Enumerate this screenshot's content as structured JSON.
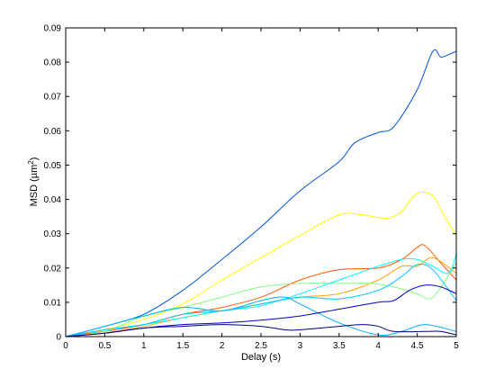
{
  "chart_data": {
    "type": "line",
    "title": "",
    "xlabel": "Delay (s)",
    "ylabel_main": "MSD (µm",
    "ylabel_sup": "2",
    "ylabel_close": ")",
    "xlim": [
      0,
      5
    ],
    "ylim": [
      0,
      0.09
    ],
    "xticks": [
      0,
      0.5,
      1,
      1.5,
      2,
      2.5,
      3,
      3.5,
      4,
      4.5,
      5
    ],
    "xtick_labels": [
      "0",
      "0.5",
      "1",
      "1.5",
      "2",
      "2.5",
      "3",
      "3.5",
      "4",
      "4.5",
      "5"
    ],
    "yticks": [
      0,
      0.01,
      0.02,
      0.03,
      0.04,
      0.05,
      0.06,
      0.07,
      0.08,
      0.09
    ],
    "ytick_labels": [
      "0",
      "0.01",
      "0.02",
      "0.03",
      "0.04",
      "0.05",
      "0.06",
      "0.07",
      "0.08",
      "0.09"
    ],
    "grid": false,
    "series": [
      {
        "color": "#0055e0",
        "points": [
          [
            0,
            0
          ],
          [
            0.5,
            0.003
          ],
          [
            1,
            0.0065
          ],
          [
            1.5,
            0.0135
          ],
          [
            2,
            0.0225
          ],
          [
            2.5,
            0.032
          ],
          [
            3,
            0.0425
          ],
          [
            3.5,
            0.051
          ],
          [
            3.7,
            0.0565
          ],
          [
            4,
            0.0595
          ],
          [
            4.2,
            0.0612
          ],
          [
            4.5,
            0.072
          ],
          [
            4.7,
            0.0832
          ],
          [
            4.8,
            0.0815
          ],
          [
            4.9,
            0.0822
          ],
          [
            5,
            0.0832
          ]
        ]
      },
      {
        "color": "#ffff00",
        "points": [
          [
            0,
            0
          ],
          [
            0.5,
            0.002
          ],
          [
            1,
            0.005
          ],
          [
            1.5,
            0.0095
          ],
          [
            2,
            0.0165
          ],
          [
            2.5,
            0.023
          ],
          [
            3,
            0.0295
          ],
          [
            3.5,
            0.0355
          ],
          [
            3.8,
            0.0355
          ],
          [
            4.1,
            0.0345
          ],
          [
            4.3,
            0.0365
          ],
          [
            4.5,
            0.0418
          ],
          [
            4.7,
            0.041
          ],
          [
            4.85,
            0.035
          ],
          [
            5,
            0.0295
          ]
        ]
      },
      {
        "color": "#ff5a00",
        "points": [
          [
            0,
            0
          ],
          [
            0.5,
            0.0015
          ],
          [
            1,
            0.0035
          ],
          [
            1.5,
            0.0065
          ],
          [
            2,
            0.0085
          ],
          [
            2.5,
            0.0115
          ],
          [
            3,
            0.0165
          ],
          [
            3.5,
            0.0195
          ],
          [
            4,
            0.02
          ],
          [
            4.3,
            0.0225
          ],
          [
            4.5,
            0.026
          ],
          [
            4.6,
            0.0265
          ],
          [
            4.8,
            0.0215
          ],
          [
            5,
            0.0165
          ]
        ]
      },
      {
        "color": "#ffa500",
        "points": [
          [
            0,
            0
          ],
          [
            0.5,
            0.001
          ],
          [
            1,
            0.003
          ],
          [
            1.5,
            0.0055
          ],
          [
            2,
            0.0075
          ],
          [
            2.5,
            0.0095
          ],
          [
            3,
            0.0115
          ],
          [
            3.5,
            0.0125
          ],
          [
            4,
            0.0165
          ],
          [
            4.3,
            0.0205
          ],
          [
            4.5,
            0.0205
          ],
          [
            4.7,
            0.023
          ],
          [
            5,
            0.0185
          ]
        ]
      },
      {
        "color": "#7fff7f",
        "points": [
          [
            0,
            0
          ],
          [
            0.5,
            0.0015
          ],
          [
            1,
            0.006
          ],
          [
            1.5,
            0.0085
          ],
          [
            2,
            0.0115
          ],
          [
            2.5,
            0.0145
          ],
          [
            3,
            0.0155
          ],
          [
            3.5,
            0.0155
          ],
          [
            3.9,
            0.0155
          ],
          [
            4.2,
            0.0145
          ],
          [
            4.5,
            0.0125
          ],
          [
            4.7,
            0.0115
          ],
          [
            5,
            0.0215
          ]
        ]
      },
      {
        "color": "#00ffff",
        "points": [
          [
            0,
            0
          ],
          [
            0.5,
            0.002
          ],
          [
            1,
            0.0035
          ],
          [
            1.5,
            0.0055
          ],
          [
            2,
            0.0075
          ],
          [
            2.5,
            0.009
          ],
          [
            3,
            0.0125
          ],
          [
            3.5,
            0.0165
          ],
          [
            4,
            0.0205
          ],
          [
            4.3,
            0.0225
          ],
          [
            4.5,
            0.0225
          ],
          [
            4.7,
            0.0205
          ],
          [
            4.9,
            0.0185
          ],
          [
            5,
            0.024
          ]
        ]
      },
      {
        "color": "#00c8ff",
        "points": [
          [
            0,
            0
          ],
          [
            0.5,
            0.002
          ],
          [
            1,
            0.0035
          ],
          [
            1.5,
            0.0065
          ],
          [
            2,
            0.0075
          ],
          [
            2.5,
            0.0095
          ],
          [
            3,
            0.0115
          ],
          [
            3.5,
            0.011
          ],
          [
            4,
            0.0135
          ],
          [
            4.3,
            0.0175
          ],
          [
            4.5,
            0.021
          ],
          [
            4.7,
            0.0195
          ],
          [
            5,
            0.0105
          ]
        ]
      },
      {
        "color": "#00b0ff",
        "points": [
          [
            0,
            0
          ],
          [
            0.5,
            0.003
          ],
          [
            1,
            0.006
          ],
          [
            1.5,
            0.0085
          ],
          [
            2,
            0.0075
          ],
          [
            2.5,
            0.0105
          ],
          [
            2.8,
            0.0115
          ],
          [
            3,
            0.0095
          ],
          [
            3.5,
            0.004
          ],
          [
            4,
            0.0005
          ],
          [
            4.3,
            0.0015
          ],
          [
            4.6,
            0.0035
          ],
          [
            5,
            0.0015
          ]
        ]
      },
      {
        "color": "#0000c8",
        "points": [
          [
            0,
            0
          ],
          [
            0.5,
            0.001
          ],
          [
            1,
            0.0025
          ],
          [
            1.5,
            0.0035
          ],
          [
            2,
            0.004
          ],
          [
            2.5,
            0.0048
          ],
          [
            3,
            0.006
          ],
          [
            3.5,
            0.008
          ],
          [
            4,
            0.01
          ],
          [
            4.2,
            0.0105
          ],
          [
            4.4,
            0.0135
          ],
          [
            4.6,
            0.015
          ],
          [
            4.8,
            0.0145
          ],
          [
            5,
            0.0125
          ]
        ]
      },
      {
        "color": "#000080",
        "points": [
          [
            0,
            0
          ],
          [
            0.5,
            0.001
          ],
          [
            1,
            0.0025
          ],
          [
            1.5,
            0.003
          ],
          [
            2,
            0.0035
          ],
          [
            2.5,
            0.003
          ],
          [
            2.8,
            0.002
          ],
          [
            3,
            0.002
          ],
          [
            3.5,
            0.003
          ],
          [
            3.8,
            0.0035
          ],
          [
            4,
            0.003
          ],
          [
            4.2,
            0.0015
          ],
          [
            4.6,
            0.0015
          ],
          [
            4.8,
            0.0015
          ],
          [
            5,
            0.0005
          ]
        ]
      }
    ]
  }
}
